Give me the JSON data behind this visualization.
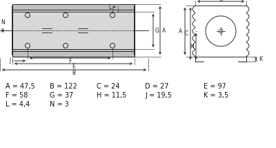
{
  "dim_text_rows": [
    [
      [
        "A = 47,5",
        8
      ],
      [
        "B = 122",
        72
      ],
      [
        "C = 24",
        140
      ],
      [
        "D = 27",
        210
      ],
      [
        "E = 97",
        295
      ]
    ],
    [
      [
        "F = 58",
        8
      ],
      [
        "G = 37",
        72
      ],
      [
        "H = 11,5",
        140
      ],
      [
        "J = 19,5",
        210
      ],
      [
        "K = 3,5",
        295
      ]
    ],
    [
      [
        "L = 4,4",
        8
      ],
      [
        "N = 3",
        72
      ]
    ]
  ],
  "line_color": "#1a1a1a",
  "body_fill": "#d8d8d8",
  "body_fill2": "#c0c0c0",
  "bg_color": "#ffffff"
}
